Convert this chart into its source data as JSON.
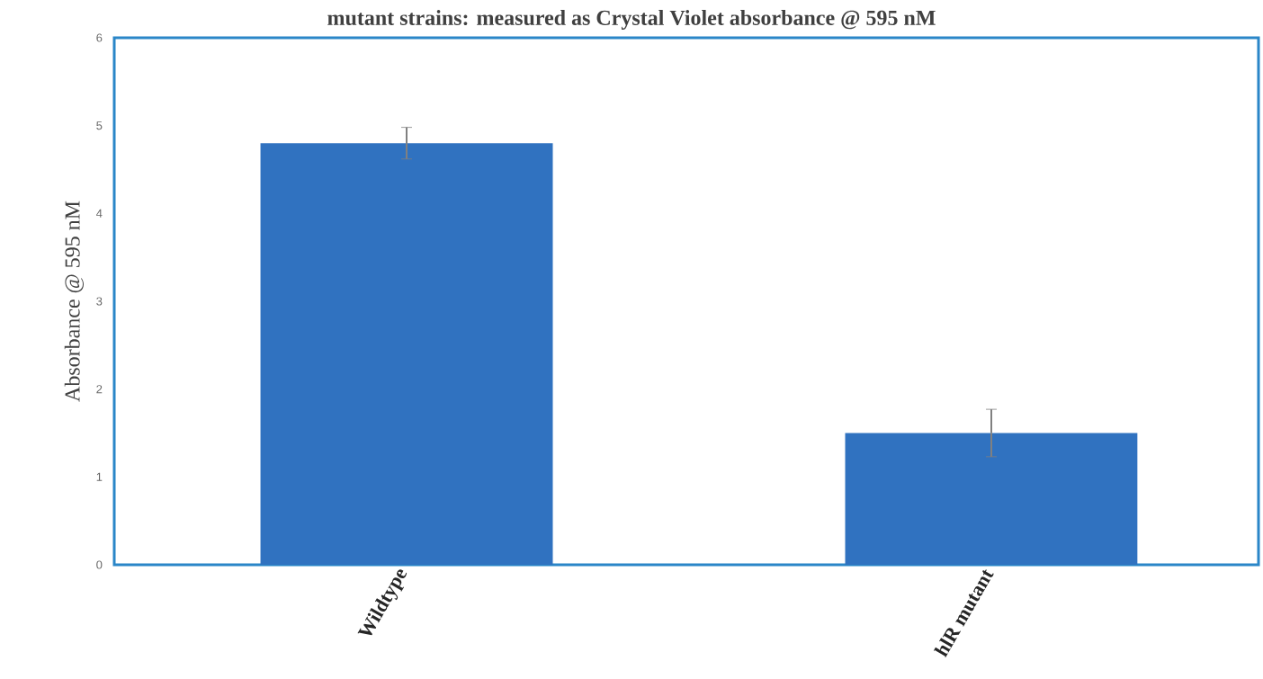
{
  "chart_data": {
    "type": "bar",
    "title": "mutant strains: measured as Crystal Violet absorbance @ 595 nM",
    "ylabel": "Absorbance @ 595 nM",
    "categories": [
      "Wildtype",
      "hlR mutant"
    ],
    "values": [
      4.8,
      1.5
    ],
    "errors": [
      0.18,
      0.27
    ],
    "color": "#3072c0",
    "ylim": [
      0,
      6
    ],
    "yticks": [
      0,
      1,
      2,
      3,
      4,
      5,
      6
    ]
  }
}
